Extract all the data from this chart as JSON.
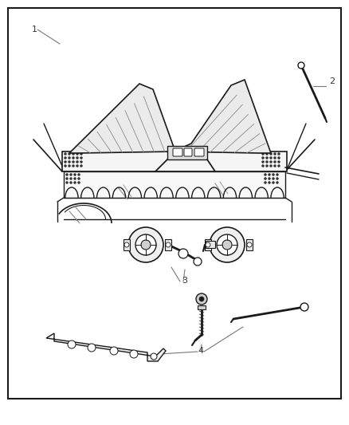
{
  "background_color": "#ffffff",
  "border_color": "#1a1a1a",
  "line_color": "#1a1a1a",
  "gray": "#777777",
  "dgray": "#333333",
  "lgray": "#cccccc",
  "figure_width": 4.38,
  "figure_height": 5.33,
  "dpi": 100
}
